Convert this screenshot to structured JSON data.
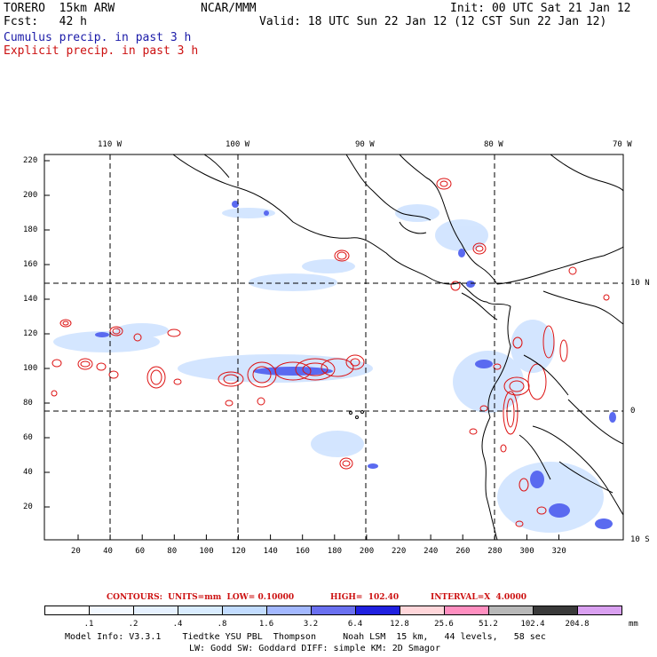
{
  "header": {
    "model": "TORERO  15km ARW",
    "org": "NCAR/MMM",
    "init": "Init: 00 UTC Sat 21 Jan 12",
    "fcst": "Fcst:   42 h",
    "valid": "Valid: 18 UTC Sun 22 Jan 12 (12 CST Sun 22 Jan 12)",
    "field1": "Cumulus precip. in past 3 h",
    "field2": "Explicit precip. in past 3 h"
  },
  "colors": {
    "field1": "#1a1aa8",
    "field2": "#cc1010",
    "contour": "#dd1111"
  },
  "map": {
    "lon_labels": [
      "110 W",
      "100 W",
      "90 W",
      "80 W",
      "70 W"
    ],
    "lat_labels": [
      "10 N",
      "0",
      "10 S"
    ],
    "y_ticks": [
      "220",
      "200",
      "180",
      "160",
      "140",
      "120",
      "100",
      "80",
      "60",
      "40",
      "20"
    ],
    "x_ticks": [
      "20",
      "40",
      "60",
      "80",
      "100",
      "120",
      "140",
      "160",
      "180",
      "200",
      "220",
      "240",
      "260",
      "280",
      "300",
      "320"
    ]
  },
  "contours_info": {
    "label": "CONTOURS:  UNITS=mm  LOW= 0.10000",
    "high": "HIGH=  102.40",
    "interval": "INTERVAL=X  4.0000"
  },
  "colorbar": {
    "labels": [
      ".1",
      ".2",
      ".4",
      ".8",
      "1.6",
      "3.2",
      "6.4",
      "12.8",
      "25.6",
      "51.2",
      "102.4",
      "204.8"
    ],
    "unit": "mm",
    "colors": [
      "#ffffff",
      "#f2f8ff",
      "#e6f1ff",
      "#d9ecff",
      "#c2dcff",
      "#a3b8ff",
      "#6a70f0",
      "#2020e0",
      "#ffd6da",
      "#ff8fc0",
      "#b8b8b8",
      "#3a3a3a",
      "#d9a0f0"
    ]
  },
  "footer": {
    "line1": "Model Info: V3.3.1    Tiedtke YSU PBL  Thompson     Noah LSM  15 km,   44 levels,   58 sec",
    "line2": "LW: Godd SW: Goddard DIFF: simple KM: 2D Smagor"
  }
}
